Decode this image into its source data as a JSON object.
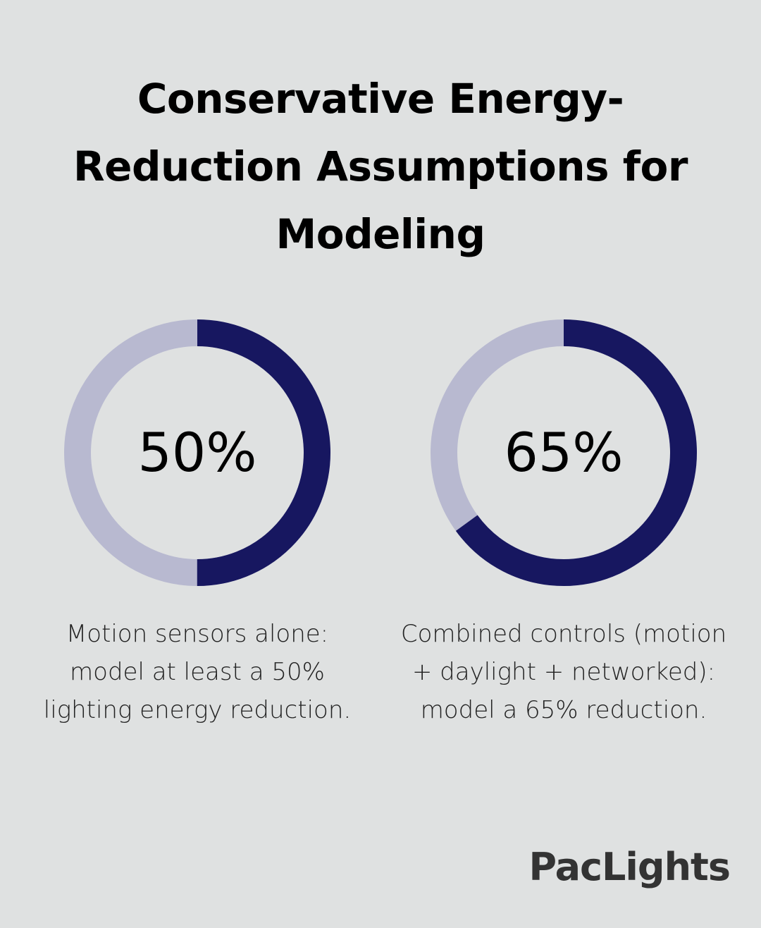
{
  "title": "Conservative Energy-Reduction Assumptions for Modeling",
  "brand": "PacLights",
  "colors": {
    "background": "#dfe1e1",
    "filled": "#171760",
    "track": "#b8b9d0"
  },
  "chart_data": [
    {
      "type": "pie",
      "label": "50%",
      "values": [
        50,
        50
      ],
      "description": "Motion sensors alone: model at least a 50% lighting energy reduction."
    },
    {
      "type": "pie",
      "label": "65%",
      "values": [
        65,
        35
      ],
      "description": "Combined controls (motion + daylight + networked): model a 65% reduction."
    }
  ]
}
